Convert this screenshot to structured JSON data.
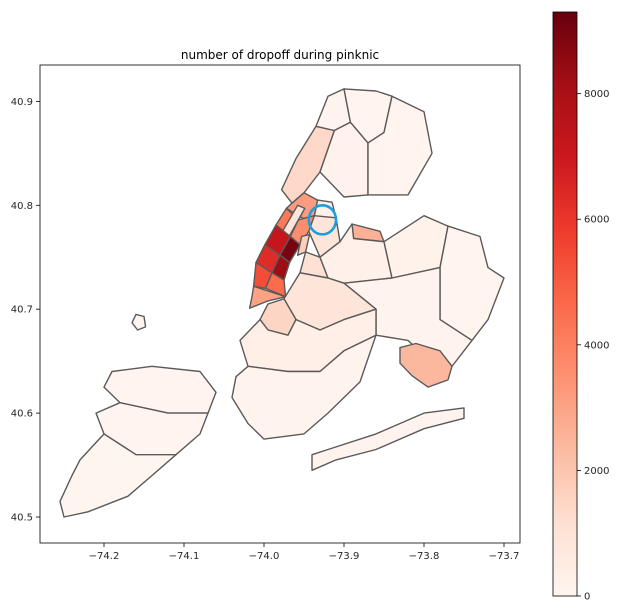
{
  "chart_data": {
    "type": "choropleth",
    "title": "number of dropoff during pinknic",
    "xlabel": "",
    "ylabel": "",
    "xlim": [
      -74.28,
      -73.68
    ],
    "ylim": [
      40.475,
      40.935
    ],
    "xticks": [
      {
        "value": -74.2,
        "label": "−74.2"
      },
      {
        "value": -74.1,
        "label": "−74.1"
      },
      {
        "value": -74.0,
        "label": "−74.0"
      },
      {
        "value": -73.9,
        "label": "−73.9"
      },
      {
        "value": -73.8,
        "label": "−73.8"
      },
      {
        "value": -73.7,
        "label": "−73.7"
      }
    ],
    "yticks": [
      {
        "value": 40.9,
        "label": "40.9"
      },
      {
        "value": 40.8,
        "label": "40.8"
      },
      {
        "value": 40.7,
        "label": "40.7"
      },
      {
        "value": 40.6,
        "label": "40.6"
      },
      {
        "value": 40.5,
        "label": "40.5"
      }
    ],
    "colorbar": {
      "colormap": "Reds",
      "min": 0,
      "max": 9300,
      "ticks": [
        {
          "value": 0,
          "label": "0"
        },
        {
          "value": 2000,
          "label": "2000"
        },
        {
          "value": 4000,
          "label": "4000"
        },
        {
          "value": 6000,
          "label": "6000"
        },
        {
          "value": 8000,
          "label": "8000"
        }
      ]
    },
    "regions": [
      {
        "id": "manhattan-upper",
        "value": 1400,
        "points": [
          [
            -73.935,
            40.876
          ],
          [
            -73.912,
            40.872
          ],
          [
            -73.93,
            40.832
          ],
          [
            -73.95,
            40.812
          ],
          [
            -73.965,
            40.802
          ],
          [
            -73.978,
            40.815
          ],
          [
            -73.96,
            40.845
          ]
        ]
      },
      {
        "id": "manhattan-harlem",
        "value": 3200,
        "points": [
          [
            -73.965,
            40.802
          ],
          [
            -73.95,
            40.812
          ],
          [
            -73.933,
            40.805
          ],
          [
            -73.937,
            40.79
          ],
          [
            -73.95,
            40.787
          ],
          [
            -73.972,
            40.797
          ]
        ]
      },
      {
        "id": "upper-west-side",
        "value": 4200,
        "points": [
          [
            -73.972,
            40.797
          ],
          [
            -73.957,
            40.786
          ],
          [
            -73.967,
            40.77
          ],
          [
            -73.985,
            40.781
          ]
        ]
      },
      {
        "id": "upper-east-side",
        "value": 3600,
        "points": [
          [
            -73.957,
            40.786
          ],
          [
            -73.937,
            40.79
          ],
          [
            -73.944,
            40.775
          ],
          [
            -73.955,
            40.762
          ],
          [
            -73.967,
            40.77
          ]
        ]
      },
      {
        "id": "central-park",
        "value": 900,
        "points": [
          [
            -73.958,
            40.8
          ],
          [
            -73.949,
            40.797
          ],
          [
            -73.973,
            40.764
          ],
          [
            -73.982,
            40.768
          ]
        ]
      },
      {
        "id": "midtown-west",
        "value": 7200,
        "points": [
          [
            -73.985,
            40.781
          ],
          [
            -73.967,
            40.77
          ],
          [
            -73.98,
            40.752
          ],
          [
            -73.999,
            40.762
          ]
        ]
      },
      {
        "id": "midtown-east",
        "value": 9000,
        "points": [
          [
            -73.967,
            40.77
          ],
          [
            -73.955,
            40.762
          ],
          [
            -73.968,
            40.745
          ],
          [
            -73.98,
            40.752
          ]
        ]
      },
      {
        "id": "chelsea",
        "value": 6300,
        "points": [
          [
            -73.999,
            40.762
          ],
          [
            -73.98,
            40.752
          ],
          [
            -73.99,
            40.735
          ],
          [
            -74.01,
            40.745
          ]
        ]
      },
      {
        "id": "gramercy",
        "value": 8300,
        "points": [
          [
            -73.98,
            40.752
          ],
          [
            -73.968,
            40.745
          ],
          [
            -73.975,
            40.728
          ],
          [
            -73.99,
            40.735
          ]
        ]
      },
      {
        "id": "west-village",
        "value": 5400,
        "points": [
          [
            -74.01,
            40.745
          ],
          [
            -73.99,
            40.735
          ],
          [
            -73.998,
            40.72
          ],
          [
            -74.013,
            40.722
          ]
        ]
      },
      {
        "id": "east-village",
        "value": 4600,
        "points": [
          [
            -73.99,
            40.735
          ],
          [
            -73.975,
            40.728
          ],
          [
            -73.973,
            40.712
          ],
          [
            -73.998,
            40.72
          ]
        ]
      },
      {
        "id": "lower-manhattan",
        "value": 3000,
        "points": [
          [
            -74.013,
            40.722
          ],
          [
            -73.973,
            40.712
          ],
          [
            -73.995,
            40.708
          ],
          [
            -74.018,
            40.701
          ],
          [
            -74.015,
            40.712
          ]
        ]
      },
      {
        "id": "roosevelt-island-area",
        "value": 1700,
        "points": [
          [
            -73.953,
            40.77
          ],
          [
            -73.943,
            40.772
          ],
          [
            -73.948,
            40.755
          ],
          [
            -73.958,
            40.752
          ]
        ]
      },
      {
        "id": "bronx-west",
        "value": 120,
        "points": [
          [
            -73.935,
            40.876
          ],
          [
            -73.92,
            40.905
          ],
          [
            -73.9,
            40.912
          ],
          [
            -73.892,
            40.88
          ],
          [
            -73.912,
            40.872
          ]
        ]
      },
      {
        "id": "bronx-south",
        "value": 200,
        "points": [
          [
            -73.912,
            40.872
          ],
          [
            -73.892,
            40.88
          ],
          [
            -73.87,
            40.86
          ],
          [
            -73.87,
            40.81
          ],
          [
            -73.9,
            40.808
          ],
          [
            -73.93,
            40.832
          ]
        ]
      },
      {
        "id": "bronx-north",
        "value": 80,
        "points": [
          [
            -73.9,
            40.912
          ],
          [
            -73.86,
            40.91
          ],
          [
            -73.84,
            40.905
          ],
          [
            -73.85,
            40.87
          ],
          [
            -73.87,
            40.86
          ],
          [
            -73.892,
            40.88
          ]
        ]
      },
      {
        "id": "bronx-east",
        "value": 60,
        "points": [
          [
            -73.87,
            40.86
          ],
          [
            -73.85,
            40.87
          ],
          [
            -73.84,
            40.905
          ],
          [
            -73.8,
            40.89
          ],
          [
            -73.79,
            40.85
          ],
          [
            -73.82,
            40.81
          ],
          [
            -73.87,
            40.81
          ]
        ]
      },
      {
        "id": "randalls-island",
        "value": 300,
        "points": [
          [
            -73.933,
            40.805
          ],
          [
            -73.915,
            40.803
          ],
          [
            -73.91,
            40.788
          ],
          [
            -73.925,
            40.78
          ],
          [
            -73.937,
            40.79
          ]
        ]
      },
      {
        "id": "queens-astoria",
        "value": 900,
        "points": [
          [
            -73.937,
            40.79
          ],
          [
            -73.91,
            40.788
          ],
          [
            -73.905,
            40.765
          ],
          [
            -73.93,
            40.75
          ],
          [
            -73.944,
            40.775
          ]
        ]
      },
      {
        "id": "laguardia",
        "value": 2600,
        "points": [
          [
            -73.89,
            40.782
          ],
          [
            -73.855,
            40.775
          ],
          [
            -73.85,
            40.765
          ],
          [
            -73.888,
            40.768
          ]
        ]
      },
      {
        "id": "queens-lic",
        "value": 1100,
        "points": [
          [
            -73.948,
            40.755
          ],
          [
            -73.93,
            40.75
          ],
          [
            -73.92,
            40.73
          ],
          [
            -73.955,
            40.735
          ]
        ]
      },
      {
        "id": "queens-north-central",
        "value": 250,
        "points": [
          [
            -73.905,
            40.765
          ],
          [
            -73.89,
            40.782
          ],
          [
            -73.888,
            40.768
          ],
          [
            -73.85,
            40.765
          ],
          [
            -73.84,
            40.73
          ],
          [
            -73.9,
            40.725
          ],
          [
            -73.92,
            40.73
          ],
          [
            -73.93,
            40.75
          ]
        ]
      },
      {
        "id": "queens-flushing",
        "value": 180,
        "points": [
          [
            -73.85,
            40.765
          ],
          [
            -73.8,
            40.79
          ],
          [
            -73.77,
            40.78
          ],
          [
            -73.78,
            40.74
          ],
          [
            -73.84,
            40.73
          ]
        ]
      },
      {
        "id": "queens-east",
        "value": 70,
        "points": [
          [
            -73.77,
            40.78
          ],
          [
            -73.73,
            40.77
          ],
          [
            -73.72,
            40.74
          ],
          [
            -73.7,
            40.73
          ],
          [
            -73.72,
            40.69
          ],
          [
            -73.74,
            40.67
          ],
          [
            -73.78,
            40.69
          ],
          [
            -73.78,
            40.74
          ]
        ]
      },
      {
        "id": "queens-south",
        "value": 120,
        "points": [
          [
            -73.84,
            40.73
          ],
          [
            -73.78,
            40.74
          ],
          [
            -73.78,
            40.69
          ],
          [
            -73.74,
            40.67
          ],
          [
            -73.77,
            40.64
          ],
          [
            -73.8,
            40.655
          ],
          [
            -73.82,
            40.67
          ],
          [
            -73.86,
            40.675
          ],
          [
            -73.86,
            40.7
          ],
          [
            -73.9,
            40.725
          ]
        ]
      },
      {
        "id": "jfk-airport",
        "value": 2400,
        "points": [
          [
            -73.83,
            40.663
          ],
          [
            -73.81,
            40.667
          ],
          [
            -73.78,
            40.66
          ],
          [
            -73.765,
            40.645
          ],
          [
            -73.77,
            40.632
          ],
          [
            -73.795,
            40.625
          ],
          [
            -73.815,
            40.636
          ],
          [
            -73.83,
            40.648
          ]
        ]
      },
      {
        "id": "brooklyn-north",
        "value": 900,
        "points": [
          [
            -73.955,
            40.735
          ],
          [
            -73.92,
            40.73
          ],
          [
            -73.9,
            40.725
          ],
          [
            -73.86,
            40.7
          ],
          [
            -73.9,
            40.69
          ],
          [
            -73.93,
            40.68
          ],
          [
            -73.96,
            40.69
          ],
          [
            -73.975,
            40.71
          ]
        ]
      },
      {
        "id": "brooklyn-downtown",
        "value": 1500,
        "points": [
          [
            -73.995,
            40.705
          ],
          [
            -73.975,
            40.71
          ],
          [
            -73.96,
            40.69
          ],
          [
            -73.97,
            40.675
          ],
          [
            -73.995,
            40.68
          ],
          [
            -74.005,
            40.69
          ]
        ]
      },
      {
        "id": "brooklyn-central",
        "value": 350,
        "points": [
          [
            -74.005,
            40.69
          ],
          [
            -73.995,
            40.68
          ],
          [
            -73.97,
            40.675
          ],
          [
            -73.96,
            40.69
          ],
          [
            -73.93,
            40.68
          ],
          [
            -73.9,
            40.69
          ],
          [
            -73.86,
            40.7
          ],
          [
            -73.86,
            40.675
          ],
          [
            -73.9,
            40.66
          ],
          [
            -73.93,
            40.64
          ],
          [
            -73.97,
            40.64
          ],
          [
            -74.02,
            40.645
          ],
          [
            -74.03,
            40.67
          ]
        ]
      },
      {
        "id": "brooklyn-south",
        "value": 100,
        "points": [
          [
            -74.02,
            40.645
          ],
          [
            -73.97,
            40.64
          ],
          [
            -73.93,
            40.64
          ],
          [
            -73.9,
            40.66
          ],
          [
            -73.86,
            40.675
          ],
          [
            -73.88,
            40.63
          ],
          [
            -73.92,
            40.6
          ],
          [
            -73.95,
            40.58
          ],
          [
            -74.0,
            40.575
          ],
          [
            -74.02,
            40.59
          ],
          [
            -74.04,
            40.615
          ],
          [
            -74.035,
            40.635
          ]
        ]
      },
      {
        "id": "rockaway",
        "value": 90,
        "points": [
          [
            -73.94,
            40.545
          ],
          [
            -73.91,
            40.555
          ],
          [
            -73.86,
            40.565
          ],
          [
            -73.8,
            40.585
          ],
          [
            -73.75,
            40.595
          ],
          [
            -73.75,
            40.605
          ],
          [
            -73.8,
            40.6
          ],
          [
            -73.86,
            40.58
          ],
          [
            -73.92,
            40.565
          ],
          [
            -73.94,
            40.56
          ]
        ]
      },
      {
        "id": "staten-island-north",
        "value": 40,
        "points": [
          [
            -74.19,
            40.64
          ],
          [
            -74.14,
            40.645
          ],
          [
            -74.08,
            40.64
          ],
          [
            -74.06,
            40.62
          ],
          [
            -74.07,
            40.6
          ],
          [
            -74.12,
            40.6
          ],
          [
            -74.18,
            40.61
          ],
          [
            -74.2,
            40.625
          ]
        ]
      },
      {
        "id": "staten-island-mid",
        "value": 30,
        "points": [
          [
            -74.18,
            40.61
          ],
          [
            -74.12,
            40.6
          ],
          [
            -74.07,
            40.6
          ],
          [
            -74.08,
            40.58
          ],
          [
            -74.11,
            40.56
          ],
          [
            -74.16,
            40.56
          ],
          [
            -74.2,
            40.58
          ],
          [
            -74.21,
            40.6
          ]
        ]
      },
      {
        "id": "staten-island-south",
        "value": 20,
        "points": [
          [
            -74.2,
            40.58
          ],
          [
            -74.16,
            40.56
          ],
          [
            -74.11,
            40.56
          ],
          [
            -74.14,
            40.54
          ],
          [
            -74.17,
            40.52
          ],
          [
            -74.22,
            40.505
          ],
          [
            -74.25,
            40.5
          ],
          [
            -74.255,
            40.515
          ],
          [
            -74.24,
            40.54
          ],
          [
            -74.23,
            40.555
          ]
        ]
      },
      {
        "id": "ellis-island-area",
        "value": 0,
        "points": [
          [
            -74.16,
            40.695
          ],
          [
            -74.15,
            40.693
          ],
          [
            -74.148,
            40.683
          ],
          [
            -74.158,
            40.68
          ],
          [
            -74.165,
            40.687
          ]
        ]
      }
    ],
    "highlight": {
      "label": "",
      "color": "#1a9ee0",
      "center": [
        -73.927,
        40.786
      ],
      "radius": [
        0.017,
        0.014
      ]
    }
  }
}
